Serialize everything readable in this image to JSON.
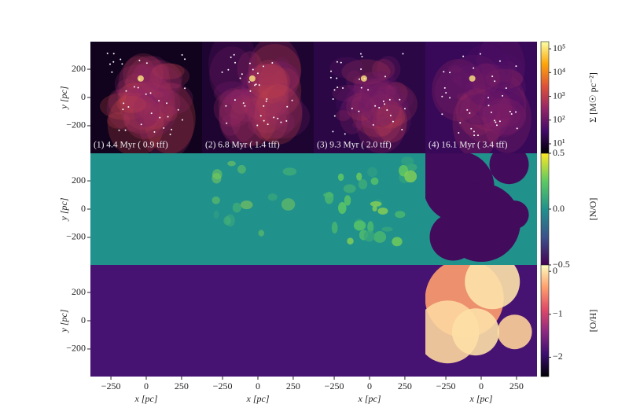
{
  "figure": {
    "panels": [
      {
        "label": "(1) 4.4 Myr ( 0.9 tff)"
      },
      {
        "label": "(2) 6.8 Myr ( 1.4 tff)"
      },
      {
        "label": "(3) 9.3 Myr ( 2.0 tff)"
      },
      {
        "label": "(4) 16.1 Myr ( 3.4 tff)"
      }
    ],
    "xlabel": "x [pc]",
    "ylabel": "y [pc]",
    "xlim": [
      -395,
      395
    ],
    "ylim": [
      -395,
      395
    ],
    "xticks": [
      {
        "value": -250,
        "label": "−250"
      },
      0,
      250
    ],
    "yticks": [
      200,
      0,
      {
        "value": -200,
        "label": "−200"
      }
    ],
    "colorbars": [
      {
        "label": "Σ [M☉ pc⁻²]",
        "log": true,
        "clim": [
          4,
          200000
        ],
        "colors": [
          "#000004",
          "#420a68",
          "#932667",
          "#dd513a",
          "#fca50a",
          "#fcffa4"
        ],
        "ticks": [
          {
            "value": 100000,
            "label": "10⁵"
          },
          {
            "value": 10000,
            "label": "10⁴"
          },
          {
            "value": 1000,
            "label": "10³"
          },
          {
            "value": 100,
            "label": "10²"
          },
          {
            "value": 10,
            "label": "10¹"
          }
        ]
      },
      {
        "label": "[N/O]",
        "log": false,
        "clim": [
          -0.5,
          0.5
        ],
        "colors": [
          "#440154",
          "#3b528b",
          "#21918c",
          "#5ec962",
          "#fde725"
        ],
        "ticks": [
          0.5,
          {
            "value": 0,
            "label": "0.0"
          },
          {
            "value": -0.5,
            "label": "−0.5"
          }
        ]
      },
      {
        "label": "[O/H]",
        "log": false,
        "clim": [
          -2.45,
          0.15
        ],
        "colors": [
          "#000004",
          "#3b0f70",
          "#8c2981",
          "#de4968",
          "#fe9f6d",
          "#fcfdbf"
        ],
        "ticks": [
          0,
          {
            "value": -1,
            "label": "−1"
          },
          {
            "value": -2,
            "label": "−2"
          }
        ]
      }
    ]
  }
}
